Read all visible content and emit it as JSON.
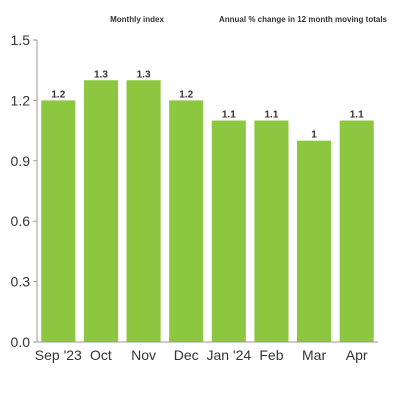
{
  "header": {
    "left_label": "Monthly index",
    "right_label": "Annual % change in 12 month moving totals"
  },
  "chart_data": {
    "type": "bar",
    "categories": [
      "Sep '23",
      "Oct",
      "Nov",
      "Dec",
      "Jan '24",
      "Feb",
      "Mar",
      "Apr"
    ],
    "values": [
      1.2,
      1.3,
      1.3,
      1.2,
      1.1,
      1.1,
      1.0,
      1.1
    ],
    "data_labels": [
      "1.2",
      "1.3",
      "1.3",
      "1.2",
      "1.1",
      "1.1",
      "1",
      "1.1"
    ],
    "ylim": [
      0,
      1.5
    ],
    "yticks": [
      0,
      0.3,
      0.6,
      0.9,
      1.2,
      1.5
    ],
    "ytick_labels": [
      "0.0",
      "0.3",
      "0.6",
      "0.9",
      "1.2",
      "1.5"
    ],
    "grid": false,
    "colors": {
      "bar": "#8dc63f",
      "axis": "#999999",
      "text": "#333333"
    }
  }
}
